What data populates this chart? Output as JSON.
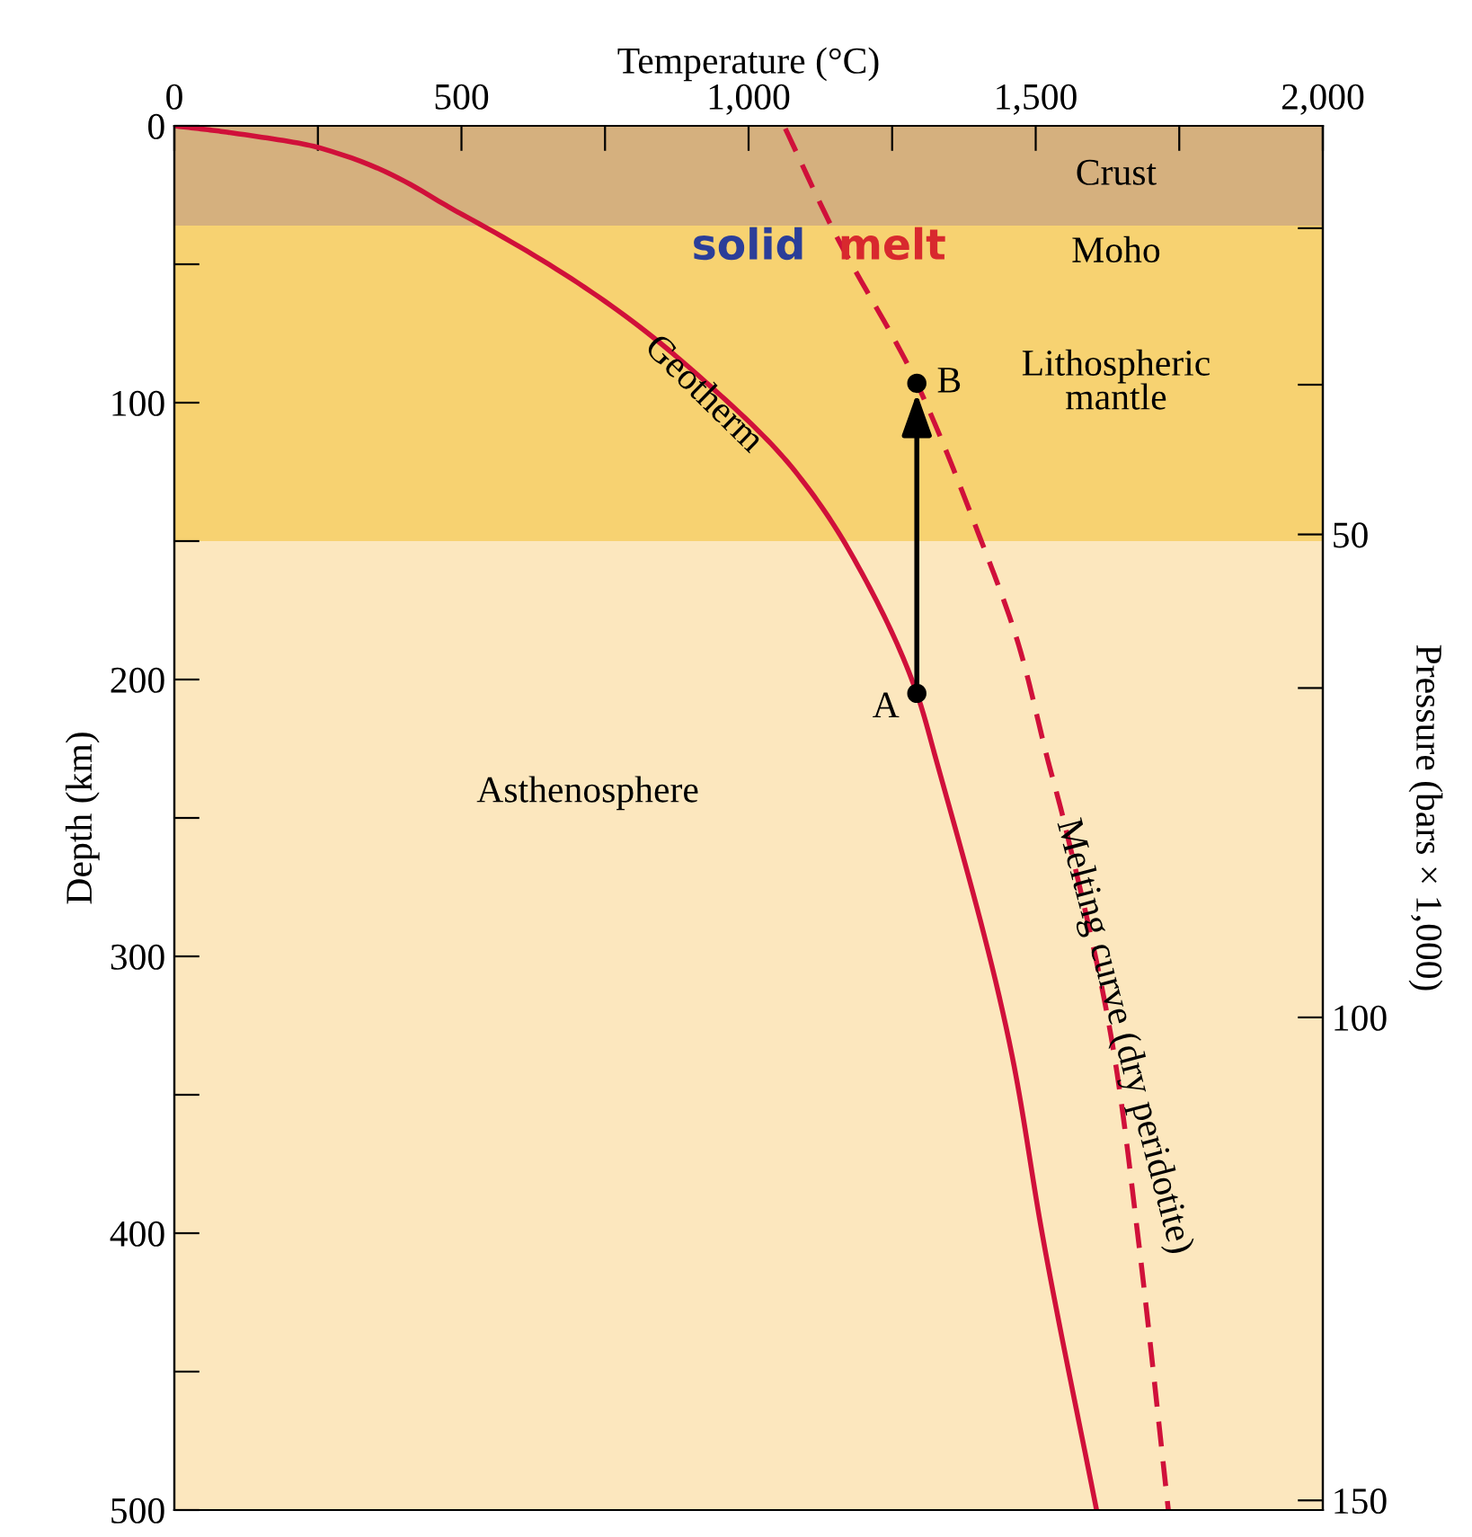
{
  "chart_data": {
    "type": "line",
    "xlabel": "Temperature (°C)",
    "ylabel": "Depth (km)",
    "y2label": "Pressure (bars × 1,000)",
    "xlim": [
      0,
      2000
    ],
    "ylim": [
      500,
      0
    ],
    "y2lim": [
      151,
      7.7
    ],
    "xticks": [
      0,
      {
        "value": 250,
        "label": null
      },
      500,
      {
        "value": 750,
        "label": null
      },
      {
        "value": 1000,
        "label": "1,000"
      },
      {
        "value": 1250,
        "label": null
      },
      {
        "value": 1500,
        "label": "1,500"
      },
      {
        "value": 1750,
        "label": null
      },
      {
        "value": 2000,
        "label": "2,000"
      }
    ],
    "yticks": [
      0,
      {
        "value": 50,
        "label": null
      },
      100,
      {
        "value": 150,
        "label": null
      },
      200,
      {
        "value": 250,
        "label": null
      },
      300,
      {
        "value": 350,
        "label": null
      },
      400,
      {
        "value": 450,
        "label": null
      },
      500
    ],
    "y2ticks": [
      {
        "value": 18.3,
        "label": null
      },
      {
        "value": 34.5,
        "label": null
      },
      50,
      {
        "value": 65.9,
        "label": null
      },
      100,
      150
    ],
    "series": [
      {
        "name": "Geotherm",
        "color": "#d0103a",
        "line_style": "solid",
        "x": [
          0,
          81,
          254,
          501,
          761,
          917,
          1074,
          1177,
          1293,
          1324,
          1459,
          1512,
          1606
        ],
        "values": [
          0,
          2,
          8,
          32,
          65,
          91,
          123,
          154,
          205,
          227,
          336,
          401,
          500
        ]
      },
      {
        "name": "Melting curve (dry peridotite)",
        "color": "#d0103a",
        "line_style": "dashed",
        "x": [
          1064,
          1146,
          1293,
          1396,
          1471,
          1521,
          1549,
          1637,
          1678,
          1731
        ],
        "values": [
          1,
          37,
          93,
          145,
          188,
          229,
          251,
          336,
          401,
          500
        ]
      },
      {
        "type": "scatter",
        "color": "#000000",
        "marker": "circle",
        "x": [
          1293,
          1293
        ],
        "values": [
          205,
          93
        ]
      }
    ],
    "bands": [
      {
        "axis": "y",
        "from": 0,
        "to": 36,
        "label": "Crust",
        "color": "#d5b07e"
      },
      {
        "axis": "y",
        "from": 36,
        "to": 150,
        "label": "Lithospheric\nmantle",
        "color": "#f7d271"
      },
      {
        "axis": "y",
        "from": 150,
        "to": 500,
        "label": "Asthenosphere",
        "color": "#fce7be"
      }
    ],
    "annotations": [
      "Moho",
      "solid",
      "melt",
      {
        "text": "A",
        "x": 1293,
        "y": 205
      },
      {
        "text": "B",
        "x": 1293,
        "y": 93
      }
    ],
    "grid": false,
    "legend": false
  }
}
